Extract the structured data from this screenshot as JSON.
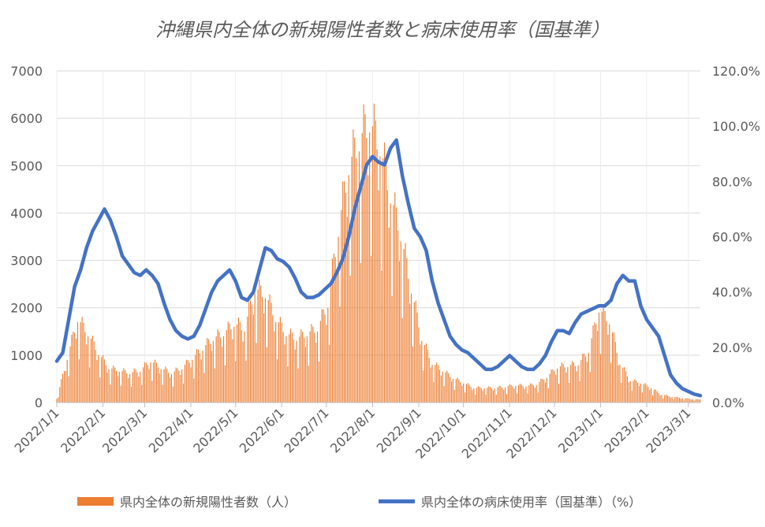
{
  "chart_data": {
    "type": "bar",
    "title": "沖縄県内全体の新規陽性者数と病床使用率（国基準）",
    "x_tick_labels": [
      "2022/1/1",
      "2022/2/1",
      "2022/3/1",
      "2022/4/1",
      "2022/5/1",
      "2022/6/1",
      "2022/7/1",
      "2022/8/1",
      "2022/9/1",
      "2022/10/1",
      "2022/11/1",
      "2022/12/1",
      "2023/1/1",
      "2023/2/1",
      "2023/3/1"
    ],
    "x_range": [
      "2022-01-01",
      "2023-03-09"
    ],
    "y_left": {
      "range": [
        0,
        7000
      ],
      "ticks": [
        "0",
        "1000",
        "2000",
        "3000",
        "4000",
        "5000",
        "6000",
        "7000"
      ]
    },
    "y_right": {
      "range": [
        0,
        120
      ],
      "ticks": [
        "0.0%",
        "20.0%",
        "40.0%",
        "60.0%",
        "80.0%",
        "100.0%",
        "120.0%"
      ]
    },
    "grid": "horizontal",
    "legend_position": "bottom",
    "series": [
      {
        "name": "県内全体の新規陽性者数（人）",
        "type": "bar",
        "axis": "left",
        "color": "#ED7D31",
        "weekly_points": [
          [
            "2022-01-01",
            80
          ],
          [
            "2022-01-08",
            900
          ],
          [
            "2022-01-15",
            1700
          ],
          [
            "2022-01-22",
            1400
          ],
          [
            "2022-01-29",
            1000
          ],
          [
            "2022-02-05",
            700
          ],
          [
            "2022-02-12",
            650
          ],
          [
            "2022-02-19",
            600
          ],
          [
            "2022-02-26",
            650
          ],
          [
            "2022-03-05",
            850
          ],
          [
            "2022-03-12",
            700
          ],
          [
            "2022-03-19",
            600
          ],
          [
            "2022-03-26",
            700
          ],
          [
            "2022-04-02",
            900
          ],
          [
            "2022-04-09",
            1100
          ],
          [
            "2022-04-16",
            1300
          ],
          [
            "2022-04-23",
            1400
          ],
          [
            "2022-04-30",
            1600
          ],
          [
            "2022-05-07",
            1500
          ],
          [
            "2022-05-14",
            2300
          ],
          [
            "2022-05-21",
            2200
          ],
          [
            "2022-05-28",
            1700
          ],
          [
            "2022-06-04",
            1400
          ],
          [
            "2022-06-11",
            1300
          ],
          [
            "2022-06-18",
            1400
          ],
          [
            "2022-06-25",
            1500
          ],
          [
            "2022-07-02",
            2000
          ],
          [
            "2022-07-09",
            3500
          ],
          [
            "2022-07-16",
            4800
          ],
          [
            "2022-07-23",
            5300
          ],
          [
            "2022-07-30",
            5700
          ],
          [
            "2022-08-06",
            5200
          ],
          [
            "2022-08-13",
            4200
          ],
          [
            "2022-08-20",
            3400
          ],
          [
            "2022-08-27",
            2300
          ],
          [
            "2022-09-03",
            1300
          ],
          [
            "2022-09-10",
            800
          ],
          [
            "2022-09-17",
            650
          ],
          [
            "2022-09-24",
            500
          ],
          [
            "2022-10-01",
            400
          ],
          [
            "2022-10-08",
            300
          ],
          [
            "2022-10-15",
            300
          ],
          [
            "2022-10-22",
            300
          ],
          [
            "2022-10-29",
            320
          ],
          [
            "2022-11-05",
            350
          ],
          [
            "2022-11-12",
            340
          ],
          [
            "2022-11-19",
            370
          ],
          [
            "2022-11-26",
            520
          ],
          [
            "2022-12-03",
            720
          ],
          [
            "2022-12-10",
            750
          ],
          [
            "2022-12-17",
            780
          ],
          [
            "2022-12-24",
            1050
          ],
          [
            "2022-12-31",
            1900
          ],
          [
            "2023-01-07",
            1650
          ],
          [
            "2023-01-14",
            800
          ],
          [
            "2023-01-21",
            450
          ],
          [
            "2023-01-28",
            400
          ],
          [
            "2023-02-04",
            300
          ],
          [
            "2023-02-11",
            160
          ],
          [
            "2023-02-18",
            120
          ],
          [
            "2023-02-25",
            90
          ],
          [
            "2023-03-04",
            70
          ],
          [
            "2023-03-09",
            60
          ]
        ]
      },
      {
        "name": "県内全体の病床使用率（国基準）（%）",
        "type": "line",
        "axis": "right",
        "color": "#4472C4",
        "points": [
          [
            "2022-01-01",
            15
          ],
          [
            "2022-01-05",
            18
          ],
          [
            "2022-01-09",
            30
          ],
          [
            "2022-01-13",
            42
          ],
          [
            "2022-01-17",
            48
          ],
          [
            "2022-01-21",
            56
          ],
          [
            "2022-01-25",
            62
          ],
          [
            "2022-01-29",
            66
          ],
          [
            "2022-02-02",
            70
          ],
          [
            "2022-02-06",
            66
          ],
          [
            "2022-02-10",
            60
          ],
          [
            "2022-02-14",
            53
          ],
          [
            "2022-02-18",
            50
          ],
          [
            "2022-02-22",
            47
          ],
          [
            "2022-02-26",
            46
          ],
          [
            "2022-03-02",
            48
          ],
          [
            "2022-03-06",
            46
          ],
          [
            "2022-03-10",
            43
          ],
          [
            "2022-03-14",
            36
          ],
          [
            "2022-03-18",
            30
          ],
          [
            "2022-03-22",
            26
          ],
          [
            "2022-03-26",
            24
          ],
          [
            "2022-03-30",
            23
          ],
          [
            "2022-04-03",
            24
          ],
          [
            "2022-04-07",
            28
          ],
          [
            "2022-04-11",
            34
          ],
          [
            "2022-04-15",
            40
          ],
          [
            "2022-04-19",
            44
          ],
          [
            "2022-04-23",
            46
          ],
          [
            "2022-04-27",
            48
          ],
          [
            "2022-05-01",
            44
          ],
          [
            "2022-05-05",
            38
          ],
          [
            "2022-05-09",
            37
          ],
          [
            "2022-05-13",
            40
          ],
          [
            "2022-05-17",
            48
          ],
          [
            "2022-05-21",
            56
          ],
          [
            "2022-05-25",
            55
          ],
          [
            "2022-05-29",
            52
          ],
          [
            "2022-06-02",
            51
          ],
          [
            "2022-06-06",
            49
          ],
          [
            "2022-06-10",
            45
          ],
          [
            "2022-06-14",
            40
          ],
          [
            "2022-06-18",
            38
          ],
          [
            "2022-06-22",
            38
          ],
          [
            "2022-06-26",
            39
          ],
          [
            "2022-06-30",
            41
          ],
          [
            "2022-07-04",
            43
          ],
          [
            "2022-07-08",
            47
          ],
          [
            "2022-07-12",
            52
          ],
          [
            "2022-07-16",
            60
          ],
          [
            "2022-07-20",
            70
          ],
          [
            "2022-07-24",
            78
          ],
          [
            "2022-07-28",
            86
          ],
          [
            "2022-08-01",
            89
          ],
          [
            "2022-08-05",
            87
          ],
          [
            "2022-08-09",
            86
          ],
          [
            "2022-08-13",
            92
          ],
          [
            "2022-08-17",
            95
          ],
          [
            "2022-08-21",
            82
          ],
          [
            "2022-08-25",
            72
          ],
          [
            "2022-08-29",
            63
          ],
          [
            "2022-09-02",
            60
          ],
          [
            "2022-09-06",
            55
          ],
          [
            "2022-09-10",
            44
          ],
          [
            "2022-09-14",
            36
          ],
          [
            "2022-09-18",
            30
          ],
          [
            "2022-09-22",
            24
          ],
          [
            "2022-09-26",
            21
          ],
          [
            "2022-09-30",
            19
          ],
          [
            "2022-10-04",
            18
          ],
          [
            "2022-10-08",
            16
          ],
          [
            "2022-10-12",
            14
          ],
          [
            "2022-10-16",
            12
          ],
          [
            "2022-10-20",
            12
          ],
          [
            "2022-10-24",
            13
          ],
          [
            "2022-10-28",
            15
          ],
          [
            "2022-11-01",
            17
          ],
          [
            "2022-11-05",
            15
          ],
          [
            "2022-11-09",
            13
          ],
          [
            "2022-11-13",
            12
          ],
          [
            "2022-11-17",
            12
          ],
          [
            "2022-11-21",
            14
          ],
          [
            "2022-11-25",
            17
          ],
          [
            "2022-11-29",
            22
          ],
          [
            "2022-12-03",
            26
          ],
          [
            "2022-12-07",
            26
          ],
          [
            "2022-12-11",
            25
          ],
          [
            "2022-12-15",
            29
          ],
          [
            "2022-12-19",
            32
          ],
          [
            "2022-12-23",
            33
          ],
          [
            "2022-12-27",
            34
          ],
          [
            "2022-12-31",
            35
          ],
          [
            "2023-01-04",
            35
          ],
          [
            "2023-01-08",
            37
          ],
          [
            "2023-01-12",
            43
          ],
          [
            "2023-01-16",
            46
          ],
          [
            "2023-01-20",
            44
          ],
          [
            "2023-01-24",
            44
          ],
          [
            "2023-01-28",
            35
          ],
          [
            "2023-02-01",
            30
          ],
          [
            "2023-02-05",
            27
          ],
          [
            "2023-02-09",
            24
          ],
          [
            "2023-02-13",
            17
          ],
          [
            "2023-02-17",
            10
          ],
          [
            "2023-02-21",
            7
          ],
          [
            "2023-02-25",
            5
          ],
          [
            "2023-03-01",
            4
          ],
          [
            "2023-03-05",
            3
          ],
          [
            "2023-03-09",
            2.5
          ]
        ]
      }
    ]
  }
}
